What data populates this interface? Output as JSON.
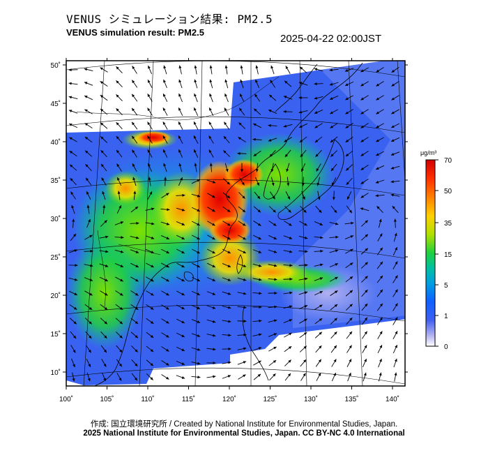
{
  "header": {
    "title_jp": "VENUS シミュレーション結果: PM2.5",
    "title_en": "VENUS simulation result: PM2.5",
    "timestamp": "2025-04-22 02:00JST"
  },
  "map": {
    "lon_ticks": [
      "100˚",
      "105˚",
      "110˚",
      "115˚",
      "120˚",
      "125˚",
      "130˚",
      "135˚",
      "140˚"
    ],
    "lat_ticks": [
      "50˚",
      "45˚",
      "40˚",
      "35˚",
      "30˚",
      "25˚",
      "20˚",
      "15˚",
      "10˚"
    ],
    "lon_range": [
      100,
      141
    ],
    "lat_range": [
      9,
      50
    ]
  },
  "colorbar": {
    "unit": "μg/m³",
    "labels": [
      "70",
      "50",
      "35",
      "15",
      "5",
      "1",
      "0"
    ],
    "colors": [
      "#d00000",
      "#ff4000",
      "#ff9000",
      "#f0e000",
      "#60e000",
      "#00c0a0",
      "#0090ff",
      "#3050ff",
      "#9090f0",
      "#ffffff"
    ]
  },
  "footer": {
    "credit": "作成: 国立環境研究所 / Created by National Institute for Environmental Studies, Japan.",
    "copyright": "2025 National Institute for Environmental Studies, Japan. CC BY-NC 4.0 International"
  }
}
